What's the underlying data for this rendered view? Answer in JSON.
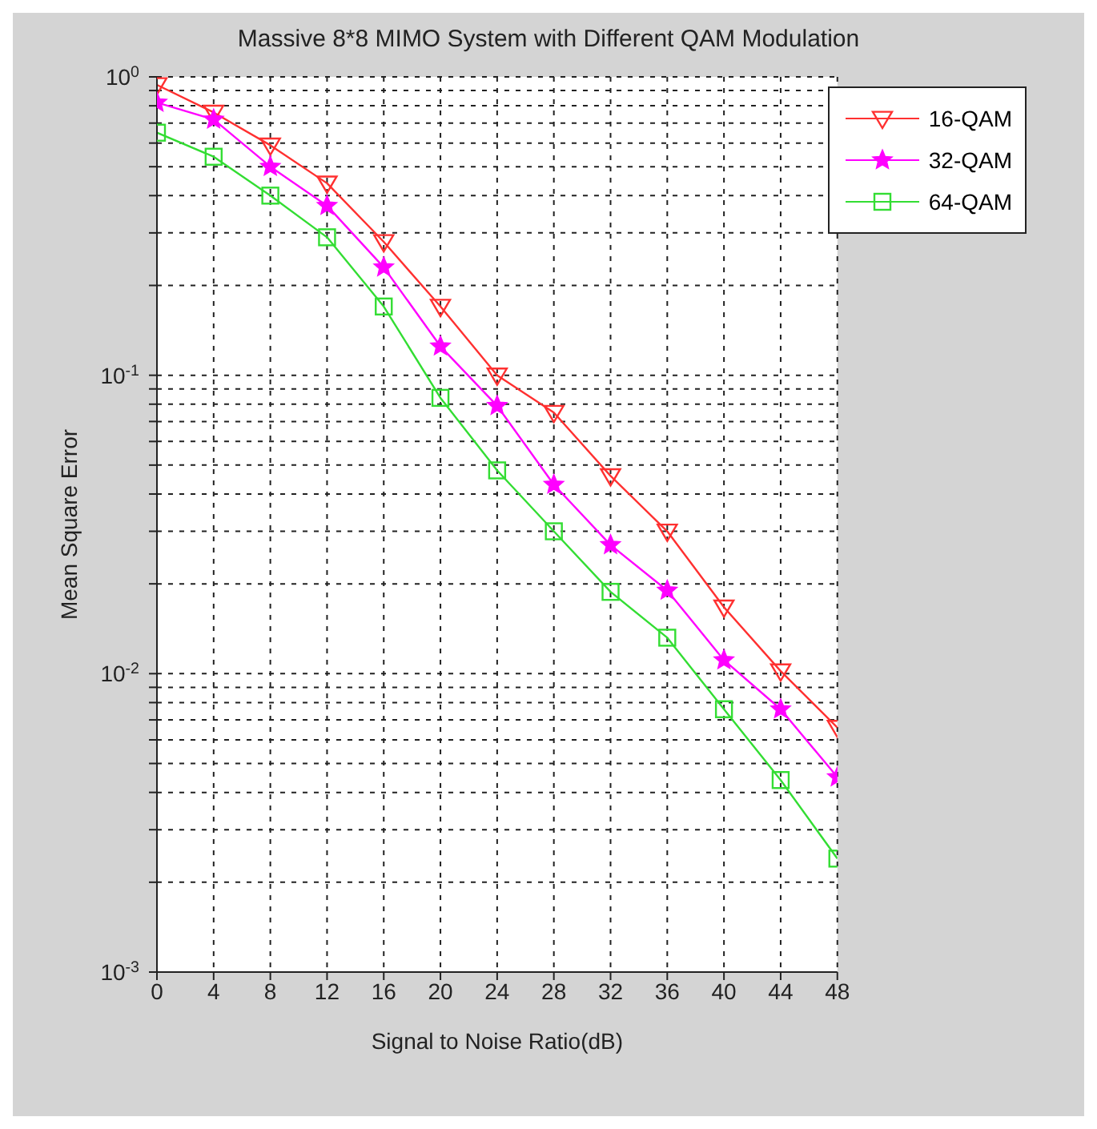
{
  "chart_data": {
    "type": "line",
    "title": "Massive 8*8 MIMO System with Different QAM Modulation",
    "xlabel": "Signal to Noise Ratio(dB)",
    "ylabel": "Mean Square Error",
    "x": [
      0,
      4,
      8,
      12,
      16,
      20,
      24,
      28,
      32,
      36,
      40,
      44,
      48
    ],
    "series": [
      {
        "name": "16-QAM",
        "color": "#ff3030",
        "marker": "triangle",
        "values": [
          0.94,
          0.76,
          0.59,
          0.44,
          0.28,
          0.17,
          0.1,
          0.075,
          0.046,
          0.03,
          0.0167,
          0.0102,
          0.0066
        ]
      },
      {
        "name": "32-QAM",
        "color": "#ff00ff",
        "marker": "star",
        "values": [
          0.82,
          0.72,
          0.5,
          0.37,
          0.23,
          0.125,
          0.079,
          0.043,
          0.027,
          0.019,
          0.0111,
          0.0076,
          0.0045
        ]
      },
      {
        "name": "64-QAM",
        "color": "#33dd33",
        "marker": "square",
        "values": [
          0.65,
          0.54,
          0.4,
          0.29,
          0.17,
          0.084,
          0.048,
          0.03,
          0.0188,
          0.0132,
          0.0076,
          0.0044,
          0.0024
        ]
      }
    ],
    "xlim": [
      0,
      48
    ],
    "xticks": [
      0,
      4,
      8,
      12,
      16,
      20,
      24,
      28,
      32,
      36,
      40,
      44,
      48
    ],
    "ylim": [
      0.001,
      1
    ],
    "log": "y",
    "yticks": [
      {
        "value": 0.001,
        "label": "10$^{-3}$"
      },
      {
        "value": 0.002,
        "label": null
      },
      {
        "value": 0.003,
        "label": null
      },
      {
        "value": 0.004,
        "label": null
      },
      {
        "value": 0.005,
        "label": null
      },
      {
        "value": 0.006,
        "label": null
      },
      {
        "value": 0.007,
        "label": null
      },
      {
        "value": 0.008,
        "label": null
      },
      {
        "value": 0.009,
        "label": null
      },
      {
        "value": 0.01,
        "label": "10$^{-2}$"
      },
      {
        "value": 0.02,
        "label": null
      },
      {
        "value": 0.03,
        "label": null
      },
      {
        "value": 0.04,
        "label": null
      },
      {
        "value": 0.05,
        "label": null
      },
      {
        "value": 0.06,
        "label": null
      },
      {
        "value": 0.07,
        "label": null
      },
      {
        "value": 0.08,
        "label": null
      },
      {
        "value": 0.09,
        "label": null
      },
      {
        "value": 0.1,
        "label": "10$^{-1}$"
      },
      {
        "value": 0.2,
        "label": null
      },
      {
        "value": 0.3,
        "label": null
      },
      {
        "value": 0.4,
        "label": null
      },
      {
        "value": 0.5,
        "label": null
      },
      {
        "value": 0.6,
        "label": null
      },
      {
        "value": 0.7,
        "label": null
      },
      {
        "value": 0.8,
        "label": null
      },
      {
        "value": 0.9,
        "label": null
      },
      {
        "value": 1,
        "label": "10$^{0}$"
      }
    ],
    "grid": true,
    "legend": "top right",
    "line_style": "solid"
  }
}
